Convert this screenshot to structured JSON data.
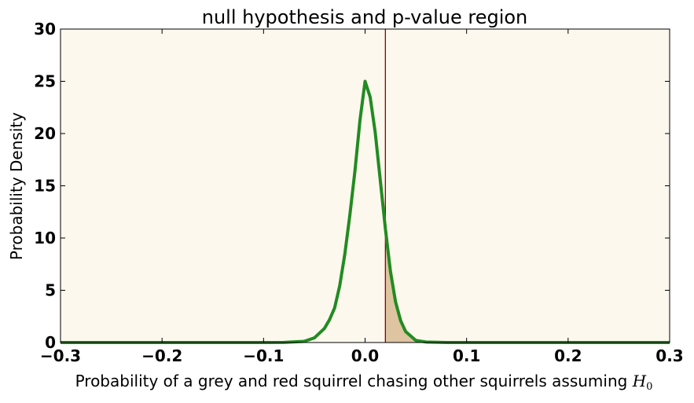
{
  "chart_data": {
    "type": "line",
    "title": "null hypothesis and p-value region",
    "xlabel": "Probability of a grey and red squirrel chasing other squirrels assuming ",
    "xlabel_math_symbol": "H",
    "xlabel_math_subscript": "0",
    "ylabel": "Probability Density",
    "xlim": [
      -0.3,
      0.3
    ],
    "ylim": [
      0,
      30
    ],
    "x_ticks": [
      -0.3,
      -0.2,
      -0.1,
      0.0,
      0.1,
      0.2,
      0.3
    ],
    "x_tick_labels": [
      "−0.3",
      "−0.2",
      "−0.1",
      "0.0",
      "0.1",
      "0.2",
      "0.3"
    ],
    "y_ticks": [
      0,
      5,
      10,
      15,
      20,
      25,
      30
    ],
    "y_tick_labels": [
      "0",
      "5",
      "10",
      "15",
      "20",
      "25",
      "30"
    ],
    "grid": false,
    "series": [
      {
        "x": [
          -0.3,
          -0.1,
          -0.08,
          -0.06,
          -0.05,
          -0.04,
          -0.035,
          -0.03,
          -0.025,
          -0.02,
          -0.015,
          -0.01,
          -0.005,
          0.0,
          0.005,
          0.01,
          0.015,
          0.02,
          0.025,
          0.03,
          0.035,
          0.04,
          0.05,
          0.06,
          0.08,
          0.1,
          0.3
        ],
        "y": [
          0,
          0,
          0.01,
          0.11,
          0.44,
          1.35,
          2.19,
          3.31,
          5.43,
          8.43,
          12.2,
          16.4,
          21.3,
          25.0,
          23.5,
          20.1,
          15.5,
          10.9,
          6.8,
          3.9,
          2.1,
          1.04,
          0.2,
          0.05,
          0.0,
          0,
          0
        ],
        "color": "#228B22"
      }
    ],
    "critical_value": 0.02,
    "critical_line_color": "#8B0000",
    "shaded_region_color": "#DEC4A1",
    "plot_background": "#FDF8EE"
  }
}
